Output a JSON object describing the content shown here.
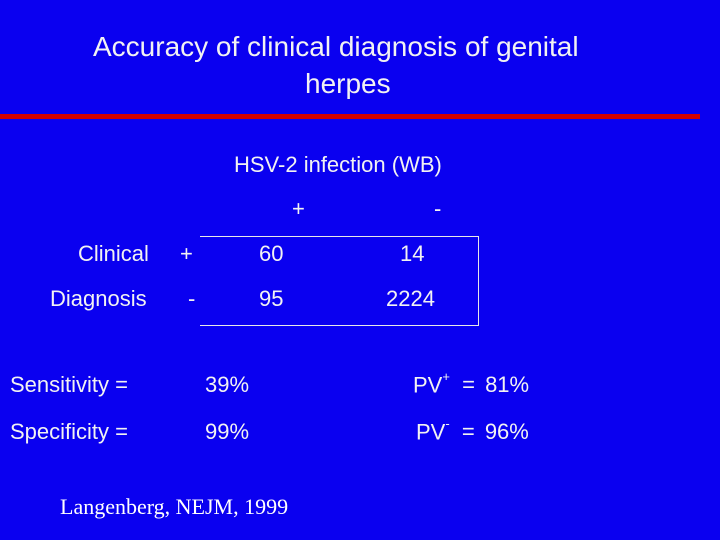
{
  "slide": {
    "title_line1": "Accuracy of clinical diagnosis of genital",
    "title_line2": "herpes",
    "accent_color": "#d40000",
    "background_color": "#0a00f0"
  },
  "table": {
    "header": "HSV-2 infection (WB)",
    "col_pos": "+",
    "col_neg": "-",
    "row1_label": "Clinical",
    "row1_sign": "+",
    "row2_label": "Diagnosis",
    "row2_sign": "-",
    "cells": [
      [
        "60",
        "14"
      ],
      [
        "95",
        "2224"
      ]
    ]
  },
  "stats": {
    "sensitivity_label": "Sensitivity =",
    "sensitivity_value": "39%",
    "specificity_label": "Specificity =",
    "specificity_value": "99%",
    "pvpos_label": "PV",
    "pvpos_sup": "+",
    "pvpos_eq": "=",
    "pvpos_value": "81%",
    "pvneg_label": "PV",
    "pvneg_sup": "-",
    "pvneg_eq": "=",
    "pvneg_value": "96%"
  },
  "citation": "Langenberg, NEJM, 1999"
}
